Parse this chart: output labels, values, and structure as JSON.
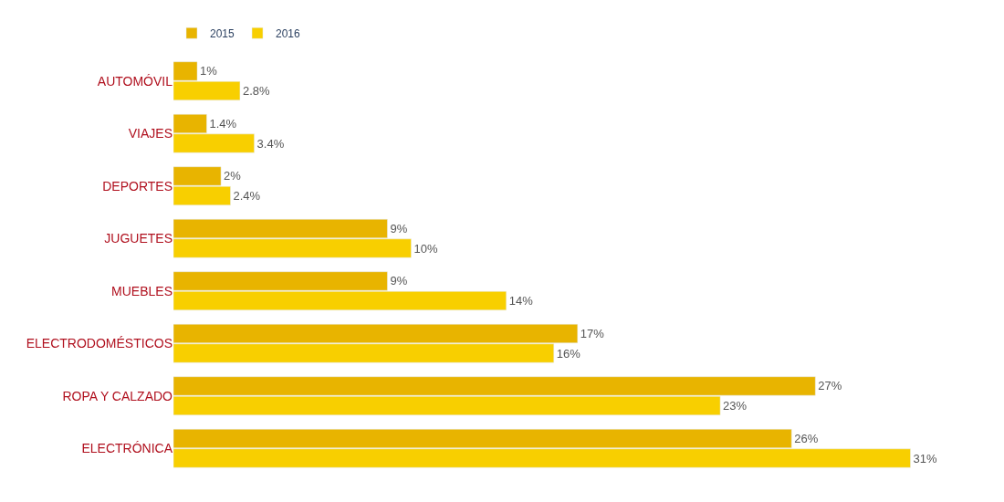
{
  "chart_data": {
    "type": "bar",
    "orientation": "horizontal",
    "categories": [
      "AUTOMÓVIL",
      "VIAJES",
      "DEPORTES",
      "JUGUETES",
      "MUEBLES",
      "ELECTRODOMÉSTICOS",
      "ROPA Y CALZADO",
      "ELECTRÓNICA"
    ],
    "series": [
      {
        "name": "2015",
        "color": "#e8b400",
        "values": [
          1,
          1.4,
          2,
          9,
          9,
          17,
          27,
          26
        ],
        "value_labels": [
          "1%",
          "1.4%",
          "2%",
          "9%",
          "9%",
          "17%",
          "27%",
          "26%"
        ]
      },
      {
        "name": "2016",
        "color": "#f8cf00",
        "values": [
          2.8,
          3.4,
          2.4,
          10,
          14,
          16,
          23,
          31
        ],
        "value_labels": [
          "2.8%",
          "3.4%",
          "2.4%",
          "10%",
          "14%",
          "16%",
          "23%",
          "31%"
        ]
      }
    ],
    "tick_labels": "y",
    "legend": "top left"
  }
}
